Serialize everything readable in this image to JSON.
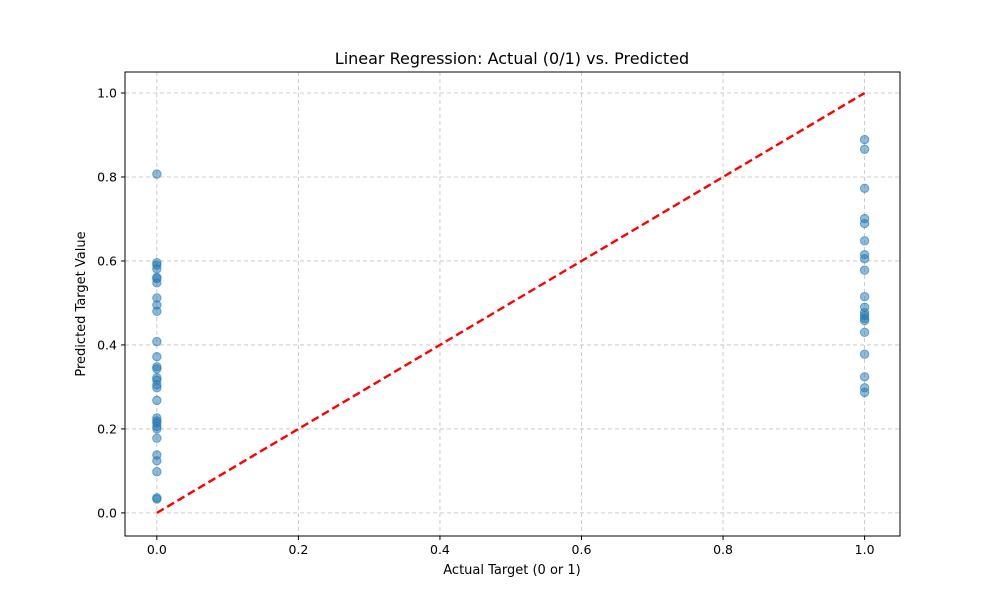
{
  "chart_data": {
    "type": "scatter",
    "title": "Linear Regression: Actual (0/1) vs. Predicted",
    "xlabel": "Actual Target (0 or 1)",
    "ylabel": "Predicted Target Value",
    "xlim": [
      -0.045,
      1.05
    ],
    "ylim": [
      -0.055,
      1.05
    ],
    "xticks": [
      "0.0",
      "0.2",
      "0.4",
      "0.6",
      "0.8",
      "1.0"
    ],
    "yticks": [
      "0.0",
      "0.2",
      "0.4",
      "0.6",
      "0.8",
      "1.0"
    ],
    "grid": true,
    "series": [
      {
        "color": "#1f77b4",
        "points": [
          [
            0,
            0.807
          ],
          [
            0,
            0.596
          ],
          [
            0,
            0.59
          ],
          [
            0,
            0.581
          ],
          [
            0,
            0.561
          ],
          [
            0,
            0.558
          ],
          [
            0,
            0.548
          ],
          [
            0,
            0.512
          ],
          [
            0,
            0.495
          ],
          [
            0,
            0.48
          ],
          [
            0,
            0.408
          ],
          [
            0,
            0.372
          ],
          [
            0,
            0.348
          ],
          [
            0,
            0.343
          ],
          [
            0,
            0.322
          ],
          [
            0,
            0.316
          ],
          [
            0,
            0.305
          ],
          [
            0,
            0.298
          ],
          [
            0,
            0.268
          ],
          [
            0,
            0.226
          ],
          [
            0,
            0.219
          ],
          [
            0,
            0.214
          ],
          [
            0,
            0.206
          ],
          [
            0,
            0.2
          ],
          [
            0,
            0.178
          ],
          [
            0,
            0.138
          ],
          [
            0,
            0.124
          ],
          [
            0,
            0.098
          ],
          [
            0,
            0.036
          ],
          [
            0,
            0.033
          ],
          [
            1,
            0.889
          ],
          [
            1,
            0.866
          ],
          [
            1,
            0.773
          ],
          [
            1,
            0.701
          ],
          [
            1,
            0.689
          ],
          [
            1,
            0.648
          ],
          [
            1,
            0.615
          ],
          [
            1,
            0.605
          ],
          [
            1,
            0.578
          ],
          [
            1,
            0.515
          ],
          [
            1,
            0.49
          ],
          [
            1,
            0.477
          ],
          [
            1,
            0.47
          ],
          [
            1,
            0.463
          ],
          [
            1,
            0.458
          ],
          [
            1,
            0.43
          ],
          [
            1,
            0.378
          ],
          [
            1,
            0.324
          ],
          [
            1,
            0.298
          ],
          [
            1,
            0.287
          ]
        ]
      }
    ],
    "reference_line": {
      "x": [
        0,
        1
      ],
      "y": [
        0,
        1
      ],
      "color": "#ff0000",
      "style": "dashed"
    }
  }
}
